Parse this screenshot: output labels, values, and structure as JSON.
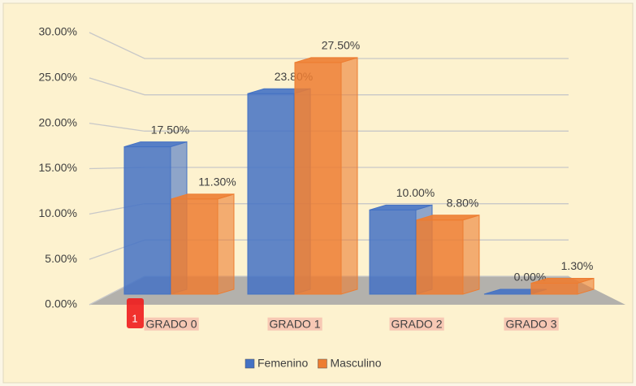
{
  "chart_data": {
    "type": "bar3d",
    "categories": [
      "GRADO 0",
      "GRADO 1",
      "GRADO 2",
      "GRADO 3"
    ],
    "series": [
      {
        "name": "Femenino",
        "color": "#4472c4",
        "values": [
          17.5,
          23.8,
          10,
          0
        ],
        "value_labels": [
          "17.50%",
          "23.80%",
          "10.00%",
          "0.00%"
        ]
      },
      {
        "name": "Masculino",
        "color": "#ed7d31",
        "values": [
          11.3,
          27.5,
          8.8,
          1.3
        ],
        "value_labels": [
          "11.30%",
          "27.50%",
          "8.80%",
          "1.30%"
        ]
      }
    ],
    "ylim": [
      0,
      30
    ],
    "yticks": [
      {
        "value": 0,
        "label": "0.00%"
      },
      {
        "value": 5,
        "label": "5.00%"
      },
      {
        "value": 10,
        "label": "10.00%"
      },
      {
        "value": 15,
        "label": "15.00%"
      },
      {
        "value": 20,
        "label": "20.00%"
      },
      {
        "value": 25,
        "label": "25.00%"
      },
      {
        "value": 30,
        "label": "30.00%"
      }
    ],
    "grid": true,
    "legend": "bottom",
    "annotations": [
      "1"
    ]
  }
}
